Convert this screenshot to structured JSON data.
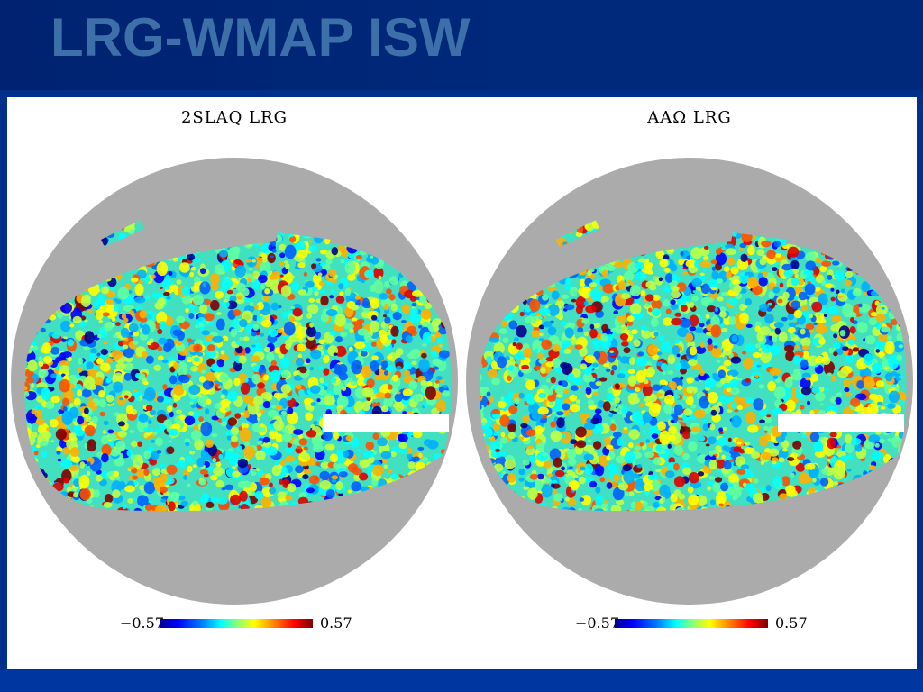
{
  "slide": {
    "title": "LRG-WMAP ISW"
  },
  "panels": [
    {
      "title": "2SLAQ LRG",
      "scale_min": "−0.57",
      "scale_max": "0.57",
      "colormap": "jet",
      "seed": 7
    },
    {
      "title": "AAΩ LRG",
      "scale_min": "−0.57",
      "scale_max": "0.57",
      "colormap": "jet",
      "seed": 13
    }
  ],
  "colors": {
    "header_bg": "#002270",
    "title_text": "#3d6fa8",
    "frame_bg": "#00308a",
    "masked_sky": "#ababab"
  }
}
